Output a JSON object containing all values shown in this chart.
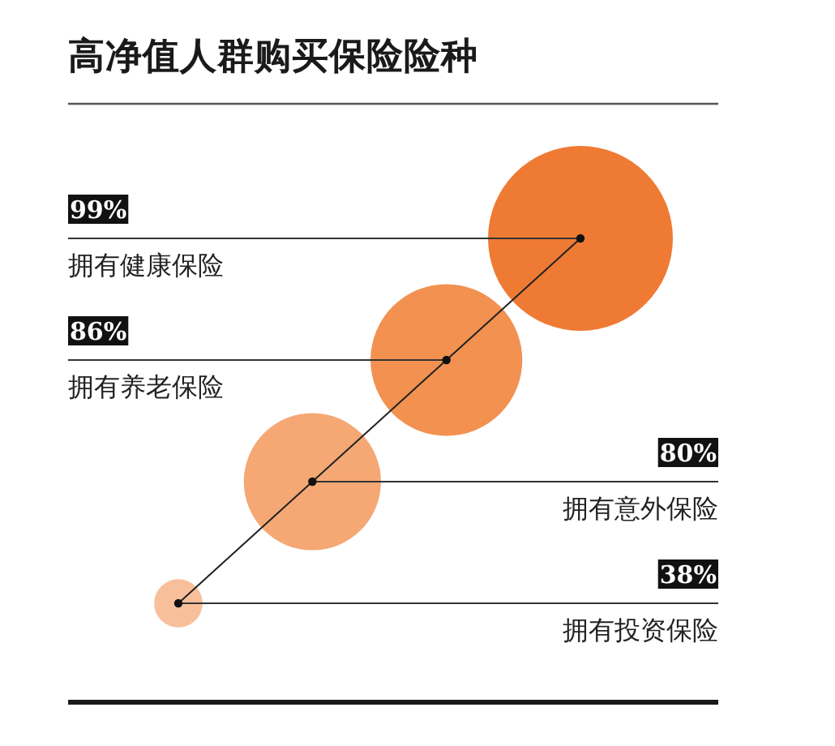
{
  "chart_data": {
    "type": "other",
    "title": "高净值人群购买保险险种",
    "categories": [
      "拥有健康保险",
      "拥有养老保险",
      "拥有意外保险",
      "拥有投资保险"
    ],
    "values": [
      99,
      86,
      80,
      38
    ],
    "value_labels": [
      "99%",
      "86%",
      "80%",
      "38%"
    ],
    "colors": [
      "#ef7a33",
      "#f29150",
      "#f5a874",
      "#f8c09a"
    ]
  }
}
